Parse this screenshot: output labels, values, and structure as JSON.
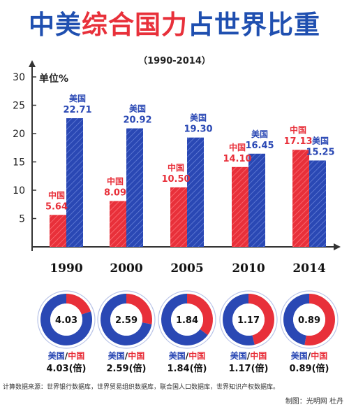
{
  "title": {
    "part1": "中美",
    "part2": "综合国力",
    "part3": "占世界比重"
  },
  "subtitle": "（1990-2014）",
  "unit_label": "单位%",
  "colors": {
    "china": "#e8303a",
    "usa": "#2a48b4",
    "title_blue": "#1f4fb0",
    "title_red": "#e8303a",
    "axis": "#333333"
  },
  "legend": {
    "usa": "美国",
    "china": "中国",
    "slash": "/"
  },
  "chart_data": {
    "type": "bar",
    "title": "中美综合国力占世界比重",
    "ylabel": "单位%",
    "ylim": [
      0,
      30
    ],
    "yticks": [
      "5",
      "10",
      "15",
      "20",
      "25",
      "30"
    ],
    "categories": [
      "1990",
      "2000",
      "2005",
      "2010",
      "2014"
    ],
    "series": [
      {
        "name": "中国",
        "values": [
          5.64,
          8.09,
          10.5,
          14.1,
          17.13
        ],
        "labels": [
          "5.64",
          "8.09",
          "10.50",
          "14.10",
          "17.13"
        ]
      },
      {
        "name": "美国",
        "values": [
          22.71,
          20.92,
          19.3,
          16.45,
          15.25
        ],
        "labels": [
          "22.71",
          "20.92",
          "19.30",
          "16.45",
          "15.25"
        ]
      }
    ]
  },
  "ratios": [
    {
      "year": "1990",
      "value": "4.03",
      "text": "4.03(倍)",
      "usa_share": 80.1
    },
    {
      "year": "2000",
      "value": "2.59",
      "text": "2.59(倍)",
      "usa_share": 72.1
    },
    {
      "year": "2005",
      "value": "1.84",
      "text": "1.84(倍)",
      "usa_share": 64.8
    },
    {
      "year": "2010",
      "value": "1.17",
      "text": "1.17(倍)",
      "usa_share": 53.8
    },
    {
      "year": "2014",
      "value": "0.89",
      "text": "0.89(倍)",
      "usa_share": 47.1
    }
  ],
  "source": "计算数据来源：世界银行数据库，世界贸易组织数据库，联合国人口数据库，世界知识产权数据库。",
  "credit": "制图：光明网 杜丹"
}
